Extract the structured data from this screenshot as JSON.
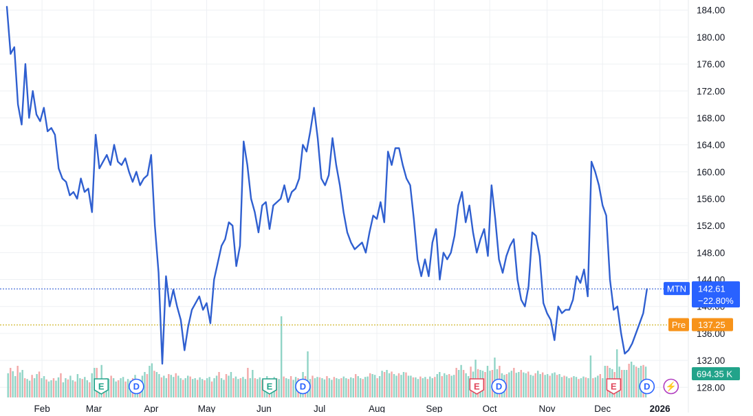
{
  "chart_data": {
    "type": "line",
    "symbol": "MTN",
    "y_axis": {
      "ticks": [
        184,
        180,
        176,
        172,
        168,
        164,
        160,
        156,
        152,
        148,
        144,
        140,
        136,
        132,
        128
      ],
      "tick_labels": [
        "184.00",
        "180.00",
        "176.00",
        "172.00",
        "168.00",
        "164.00",
        "160.00",
        "156.00",
        "152.00",
        "148.00",
        "144.00",
        "140.00",
        "136.00",
        "132.00",
        "128.00"
      ],
      "range": [
        126.5,
        185.5
      ],
      "position": "right"
    },
    "x_axis": {
      "labels": [
        "Feb",
        "Mar",
        "Apr",
        "May",
        "Jun",
        "Jul",
        "Aug",
        "Sep",
        "Oct",
        "Nov",
        "Dec",
        "2026"
      ],
      "label_days": [
        19,
        47,
        78,
        108,
        139,
        169,
        200,
        231,
        261,
        292,
        322,
        353
      ],
      "range": [
        0,
        368
      ]
    },
    "grid": true,
    "price_series": {
      "name": "MTN",
      "color": "#2f5fd0",
      "points": [
        [
          0,
          184.5
        ],
        [
          2,
          177.5
        ],
        [
          4,
          178.5
        ],
        [
          6,
          170
        ],
        [
          8,
          167
        ],
        [
          10,
          176
        ],
        [
          12,
          168
        ],
        [
          14,
          172
        ],
        [
          16,
          168.5
        ],
        [
          18,
          167.5
        ],
        [
          20,
          169.5
        ],
        [
          22,
          166
        ],
        [
          24,
          166.5
        ],
        [
          26,
          165.5
        ],
        [
          28,
          160.5
        ],
        [
          30,
          159
        ],
        [
          32,
          158.5
        ],
        [
          34,
          156.5
        ],
        [
          36,
          157
        ],
        [
          38,
          156
        ],
        [
          40,
          159
        ],
        [
          42,
          157
        ],
        [
          44,
          157.5
        ],
        [
          46,
          154
        ],
        [
          48,
          165.5
        ],
        [
          50,
          160.5
        ],
        [
          52,
          161.5
        ],
        [
          54,
          162.5
        ],
        [
          56,
          161
        ],
        [
          58,
          164
        ],
        [
          60,
          161.5
        ],
        [
          62,
          161
        ],
        [
          64,
          162
        ],
        [
          66,
          160
        ],
        [
          68,
          158.5
        ],
        [
          70,
          160
        ],
        [
          72,
          158
        ],
        [
          74,
          159
        ],
        [
          76,
          159.5
        ],
        [
          78,
          162.5
        ],
        [
          80,
          152
        ],
        [
          82,
          145
        ],
        [
          84,
          131.5
        ],
        [
          86,
          144.5
        ],
        [
          88,
          140
        ],
        [
          90,
          142.5
        ],
        [
          92,
          140
        ],
        [
          94,
          138
        ],
        [
          96,
          133.5
        ],
        [
          98,
          137
        ],
        [
          100,
          139.5
        ],
        [
          102,
          140.5
        ],
        [
          104,
          141.5
        ],
        [
          106,
          139.5
        ],
        [
          108,
          140.5
        ],
        [
          110,
          137.5
        ],
        [
          112,
          144
        ],
        [
          114,
          146.5
        ],
        [
          116,
          149
        ],
        [
          118,
          150
        ],
        [
          120,
          152.5
        ],
        [
          122,
          152
        ],
        [
          124,
          146
        ],
        [
          126,
          149
        ],
        [
          128,
          164.5
        ],
        [
          130,
          161
        ],
        [
          132,
          156
        ],
        [
          134,
          154
        ],
        [
          136,
          151
        ],
        [
          138,
          155
        ],
        [
          140,
          155.5
        ],
        [
          142,
          151.5
        ],
        [
          144,
          155
        ],
        [
          146,
          155.5
        ],
        [
          148,
          156
        ],
        [
          150,
          158
        ],
        [
          152,
          155.5
        ],
        [
          154,
          157
        ],
        [
          156,
          157.5
        ],
        [
          158,
          159
        ],
        [
          160,
          164
        ],
        [
          162,
          163
        ],
        [
          164,
          166
        ],
        [
          166,
          169.5
        ],
        [
          168,
          165
        ],
        [
          170,
          159
        ],
        [
          172,
          158
        ],
        [
          174,
          159.5
        ],
        [
          176,
          165
        ],
        [
          178,
          161
        ],
        [
          180,
          158
        ],
        [
          182,
          154
        ],
        [
          184,
          151
        ],
        [
          186,
          149.5
        ],
        [
          188,
          148.5
        ],
        [
          190,
          149
        ],
        [
          192,
          149.5
        ],
        [
          194,
          148
        ],
        [
          196,
          151
        ],
        [
          198,
          153.5
        ],
        [
          200,
          153
        ],
        [
          202,
          155.5
        ],
        [
          204,
          152.5
        ],
        [
          206,
          163
        ],
        [
          208,
          161
        ],
        [
          210,
          163.5
        ],
        [
          212,
          163.5
        ],
        [
          214,
          161
        ],
        [
          216,
          159
        ],
        [
          218,
          158
        ],
        [
          220,
          153
        ],
        [
          222,
          147
        ],
        [
          224,
          144.5
        ],
        [
          226,
          147
        ],
        [
          228,
          144.5
        ],
        [
          230,
          149.5
        ],
        [
          232,
          151.5
        ],
        [
          234,
          144
        ],
        [
          236,
          148
        ],
        [
          238,
          147
        ],
        [
          240,
          148
        ],
        [
          242,
          150.5
        ],
        [
          244,
          155
        ],
        [
          246,
          157
        ],
        [
          248,
          152.5
        ],
        [
          250,
          155
        ],
        [
          252,
          151
        ],
        [
          254,
          148
        ],
        [
          256,
          150
        ],
        [
          258,
          151.5
        ],
        [
          260,
          147.5
        ],
        [
          262,
          158
        ],
        [
          264,
          153
        ],
        [
          266,
          147
        ],
        [
          268,
          145
        ],
        [
          270,
          147.5
        ],
        [
          272,
          149
        ],
        [
          274,
          150
        ],
        [
          276,
          144
        ],
        [
          278,
          141
        ],
        [
          280,
          140
        ],
        [
          282,
          143
        ],
        [
          284,
          151
        ],
        [
          286,
          150.5
        ],
        [
          288,
          147.5
        ],
        [
          290,
          140.5
        ],
        [
          292,
          139
        ],
        [
          294,
          138
        ],
        [
          296,
          135
        ],
        [
          298,
          140
        ],
        [
          300,
          139
        ],
        [
          302,
          139.5
        ],
        [
          304,
          139.5
        ],
        [
          306,
          141
        ],
        [
          308,
          144.5
        ],
        [
          310,
          143.5
        ],
        [
          312,
          145.5
        ],
        [
          314,
          141.5
        ],
        [
          316,
          161.5
        ],
        [
          318,
          160
        ],
        [
          320,
          158
        ],
        [
          322,
          155
        ],
        [
          324,
          153.5
        ],
        [
          326,
          144
        ],
        [
          328,
          139.5
        ],
        [
          330,
          140
        ],
        [
          332,
          136
        ],
        [
          334,
          133
        ],
        [
          336,
          133.5
        ],
        [
          338,
          134.5
        ],
        [
          340,
          136
        ],
        [
          342,
          137.5
        ],
        [
          344,
          139
        ],
        [
          346,
          142.6
        ]
      ]
    },
    "volume_series": {
      "color_up": "#8ad2c3",
      "color_down": "#f2a3a3",
      "baseline_ratio": 0.035,
      "values": [
        0.42,
        0.55,
        0.47,
        0.35,
        0.6,
        0.44,
        0.5,
        0.3,
        0.28,
        0.24,
        0.38,
        0.3,
        0.4,
        0.46,
        0.3,
        0.35,
        0.27,
        0.22,
        0.25,
        0.3,
        0.24,
        0.32,
        0.42,
        0.2,
        0.3,
        0.27,
        0.36,
        0.25,
        0.22,
        0.4,
        0.3,
        0.28,
        0.33,
        0.25,
        0.2,
        0.42,
        0.3,
        0.26,
        0.24,
        0.62,
        0.2,
        0.3,
        0.28,
        0.36,
        0.3,
        0.22,
        0.25,
        0.3,
        0.33,
        0.22,
        0.28,
        0.24,
        0.3,
        0.38,
        0.22,
        0.27,
        0.36,
        0.45,
        0.4,
        0.6,
        0.66,
        0.48,
        0.45,
        0.4,
        0.32,
        0.36,
        0.3,
        0.4,
        0.38,
        0.33,
        0.42,
        0.36,
        0.3,
        0.26,
        0.3,
        0.36,
        0.34,
        0.28,
        0.3,
        0.26,
        0.32,
        0.28,
        0.25,
        0.3,
        0.33,
        0.22,
        0.3,
        0.36,
        0.45,
        0.3,
        0.26,
        0.4,
        0.36,
        0.45,
        0.3,
        0.34,
        0.28,
        0.3,
        0.33,
        0.28,
        0.55,
        0.3,
        0.42,
        0.3,
        0.28,
        0.32,
        0.26,
        0.25,
        0.35,
        0.3,
        0.28,
        0.33,
        0.3,
        0.28,
        0.3,
        0.34,
        0.3,
        0.28,
        0.35,
        0.26,
        0.33,
        0.3,
        0.27,
        0.45,
        0.35,
        0.33,
        0.28,
        0.36,
        0.3,
        0.33,
        0.32,
        0.3,
        0.27,
        0.35,
        0.3,
        0.26,
        0.33,
        0.3,
        0.28,
        0.3,
        0.34,
        0.3,
        0.28,
        0.32,
        0.3,
        0.4,
        0.35,
        0.3,
        0.28,
        0.33,
        0.34,
        0.42,
        0.4,
        0.38,
        0.3,
        0.35,
        0.48,
        0.45,
        0.5,
        0.42,
        0.46,
        0.4,
        0.36,
        0.42,
        0.38,
        0.45,
        0.44,
        0.36,
        0.36,
        0.32,
        0.32,
        0.28,
        0.34,
        0.3,
        0.33,
        0.28,
        0.34,
        0.3,
        0.33,
        0.4,
        0.45,
        0.35,
        0.42,
        0.38,
        0.4,
        0.36,
        0.38,
        0.55,
        0.5,
        0.62,
        0.5,
        0.42,
        0.35,
        0.58,
        0.46,
        0.75,
        0.52,
        0.5,
        0.48,
        0.45,
        0.6,
        0.48,
        0.5,
        0.45,
        0.52,
        0.38,
        0.42,
        0.38,
        0.4,
        0.44,
        0.48,
        0.55,
        0.43,
        0.45,
        0.5,
        0.44,
        0.42,
        0.46,
        0.38,
        0.36,
        0.42,
        0.48,
        0.4,
        0.44,
        0.38,
        0.4,
        0.36,
        0.42,
        0.44,
        0.38,
        0.4,
        0.33,
        0.36,
        0.34,
        0.3,
        0.32,
        0.35,
        0.33,
        0.28,
        0.3,
        0.34,
        0.32,
        0.3,
        0.28,
        0.3,
        0.32,
        0.36,
        0.4,
        0.3,
        0.42,
        0.5,
        0.55,
        0.52,
        0.45,
        0.6,
        0.58,
        0.45,
        0.55,
        0.5,
        0.65,
        0.7,
        0.62,
        0.58,
        0.55,
        0.6,
        0.62,
        0.58
      ],
      "spikes": [
        [
          148,
          1.8
        ],
        [
          163,
          0.95
        ],
        [
          264,
          0.8
        ],
        [
          324,
          0.6
        ],
        [
          330,
          1.0
        ],
        [
          316,
          0.85
        ],
        [
          48,
          0.55
        ],
        [
          266,
          0.6
        ],
        [
          133,
          0.5
        ],
        [
          333,
          0.5
        ]
      ]
    },
    "reference_lines": [
      {
        "name": "MTN",
        "value": 142.61,
        "color": "#1a4bd0",
        "dash": "2,2"
      },
      {
        "name": "Pre",
        "value": 137.25,
        "color": "#c8a800",
        "dash": "2,2"
      }
    ],
    "price_labels": [
      {
        "tag": "MTN",
        "value": "142.61",
        "change": "−22.80%",
        "color": "#2962ff"
      },
      {
        "tag": "Pre",
        "value": "137.25",
        "color": "#f7931a"
      }
    ],
    "volume_label": {
      "value": "694.35 K",
      "color": "#22a38a"
    },
    "event_markers": [
      {
        "day": 51,
        "letter": "E",
        "kind": "earnings",
        "color": "#22a38a"
      },
      {
        "day": 70,
        "letter": "D",
        "kind": "dividend",
        "color": "#2962ff"
      },
      {
        "day": 142,
        "letter": "E",
        "kind": "earnings",
        "color": "#22a38a"
      },
      {
        "day": 160,
        "letter": "D",
        "kind": "dividend",
        "color": "#2962ff"
      },
      {
        "day": 254,
        "letter": "E",
        "kind": "earnings",
        "color": "#e0455a"
      },
      {
        "day": 266,
        "letter": "D",
        "kind": "dividend",
        "color": "#2962ff"
      },
      {
        "day": 328,
        "letter": "E",
        "kind": "earnings",
        "color": "#e0455a"
      },
      {
        "day": 346,
        "letter": "D",
        "kind": "dividend",
        "color": "#2962ff"
      },
      {
        "day": 359,
        "letter": "⚡",
        "kind": "split",
        "color": "#b03bbf"
      }
    ]
  }
}
